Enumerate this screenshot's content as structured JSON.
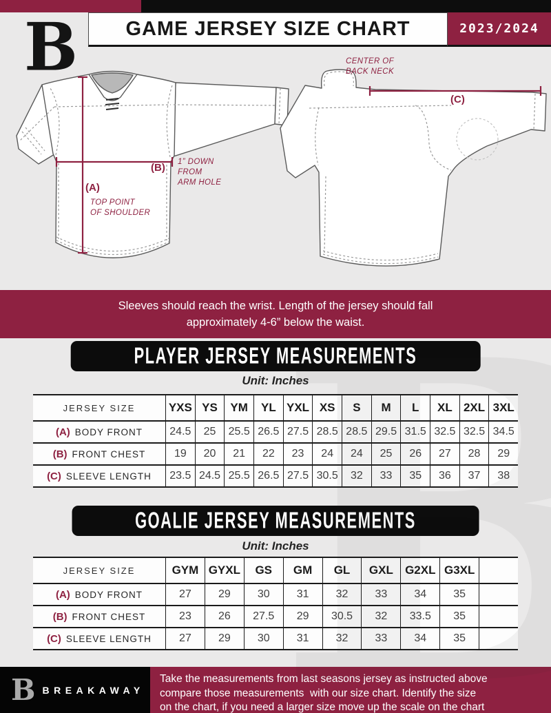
{
  "colors": {
    "maroon": "#8E2141",
    "black": "#0d0d0d",
    "background": "#eae9e9",
    "cell_white": "#fdfdfd"
  },
  "header": {
    "logo_text": "B",
    "title": "GAME JERSEY SIZE CHART",
    "season": "2023/2024"
  },
  "diagram": {
    "front": {
      "a_key": "(A)",
      "a_cap1": "TOP POINT",
      "a_cap2": "OF SHOULDER",
      "b_key": "(B)",
      "b_cap1": "1” DOWN",
      "b_cap2": "FROM",
      "b_cap3": "ARM HOLE"
    },
    "back": {
      "neck_cap1": "CENTER OF",
      "neck_cap2": "BACK NECK",
      "c_key": "(C)"
    }
  },
  "banner": {
    "line1": "Sleeves should reach the wrist. Length of the jersey should fall",
    "line2": "approximately 4-6” below the waist."
  },
  "player_section": {
    "title": "PLAYER JERSEY MEASUREMENTS",
    "unit": "Unit: Inches"
  },
  "player_table": {
    "corner_label": "JERSEY SIZE",
    "sizes": [
      "YXS",
      "YS",
      "YM",
      "YL",
      "YXL",
      "XS",
      "S",
      "M",
      "L",
      "XL",
      "2XL",
      "3XL"
    ],
    "rows": [
      {
        "key": "(A)",
        "label": "BODY FRONT",
        "values": [
          "24.5",
          "25",
          "25.5",
          "26.5",
          "27.5",
          "28.5",
          "28.5",
          "29.5",
          "31.5",
          "32.5",
          "32.5",
          "34.5"
        ]
      },
      {
        "key": "(B)",
        "label": "FRONT CHEST",
        "values": [
          "19",
          "20",
          "21",
          "22",
          "23",
          "24",
          "24",
          "25",
          "26",
          "27",
          "28",
          "29"
        ]
      },
      {
        "key": "(C)",
        "label": "SLEEVE LENGTH",
        "values": [
          "23.5",
          "24.5",
          "25.5",
          "26.5",
          "27.5",
          "30.5",
          "32",
          "33",
          "35",
          "36",
          "37",
          "38"
        ]
      }
    ]
  },
  "goalie_section": {
    "title": "GOALIE JERSEY MEASUREMENTS",
    "unit": "Unit: Inches"
  },
  "goalie_table": {
    "corner_label": "JERSEY SIZE",
    "sizes": [
      "GYM",
      "GYXL",
      "GS",
      "GM",
      "GL",
      "GXL",
      "G2XL",
      "G3XL",
      ""
    ],
    "rows": [
      {
        "key": "(A)",
        "label": "BODY FRONT",
        "values": [
          "27",
          "29",
          "30",
          "31",
          "32",
          "33",
          "34",
          "35",
          ""
        ]
      },
      {
        "key": "(B)",
        "label": "FRONT CHEST",
        "values": [
          "23",
          "26",
          "27.5",
          "29",
          "30.5",
          "32",
          "33.5",
          "35",
          ""
        ]
      },
      {
        "key": "(C)",
        "label": "SLEEVE LENGTH",
        "values": [
          "27",
          "29",
          "30",
          "31",
          "32",
          "33",
          "34",
          "35",
          ""
        ]
      }
    ]
  },
  "footer": {
    "logo_text": "B",
    "brand": "BREAKAWAY",
    "note_line1": "Take the measurements from last seasons jersey as instructed above",
    "note_line2": "compare those measurements  with our size chart. Identify the size",
    "note_line3": "on the chart, if you need a larger size move up the scale on the chart"
  },
  "watermark_text": "B"
}
